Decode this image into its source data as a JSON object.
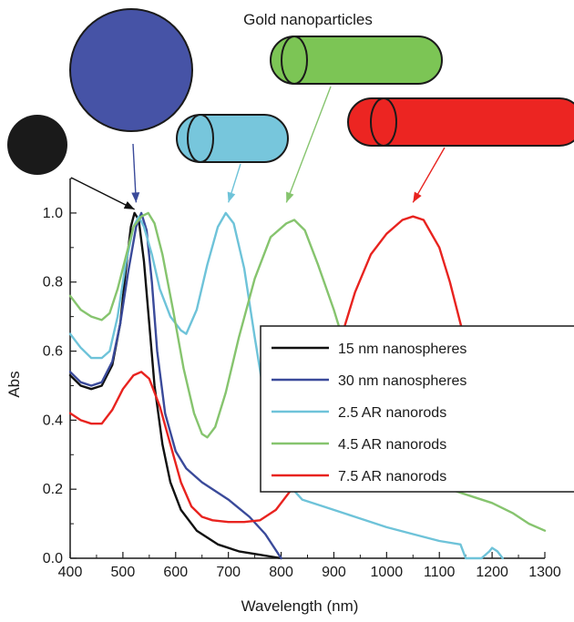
{
  "title": "Gold nanoparticles",
  "chart_data": {
    "type": "line",
    "xlabel": "Wavelength (nm)",
    "ylabel": "Abs",
    "xlim": [
      400,
      1300
    ],
    "ylim": [
      0,
      1.1
    ],
    "xticks": [
      400,
      500,
      600,
      700,
      800,
      900,
      1000,
      1100,
      1200,
      1300
    ],
    "yticks": [
      0.0,
      0.2,
      0.4,
      0.6,
      0.8,
      1.0
    ],
    "xtick_labels": [
      "400",
      "500",
      "600",
      "700",
      "800",
      "900",
      "1000",
      "1100",
      "1200",
      "1300"
    ],
    "ytick_labels": [
      "0.0",
      "0.2",
      "0.4",
      "0.6",
      "0.8",
      "1.0"
    ],
    "grid": false,
    "legend_position": "center-right",
    "series": [
      {
        "name": "15 nm nanospheres",
        "color": "#111111",
        "points": [
          [
            400,
            0.53
          ],
          [
            420,
            0.5
          ],
          [
            440,
            0.49
          ],
          [
            460,
            0.5
          ],
          [
            480,
            0.56
          ],
          [
            495,
            0.68
          ],
          [
            505,
            0.83
          ],
          [
            515,
            0.96
          ],
          [
            522,
            1.0
          ],
          [
            530,
            0.98
          ],
          [
            540,
            0.86
          ],
          [
            550,
            0.68
          ],
          [
            560,
            0.5
          ],
          [
            575,
            0.33
          ],
          [
            590,
            0.22
          ],
          [
            610,
            0.14
          ],
          [
            640,
            0.08
          ],
          [
            680,
            0.04
          ],
          [
            720,
            0.02
          ],
          [
            760,
            0.01
          ],
          [
            800,
            0.0
          ]
        ]
      },
      {
        "name": "30 nm nanospheres",
        "color": "#3a4a9a",
        "points": [
          [
            400,
            0.54
          ],
          [
            420,
            0.51
          ],
          [
            440,
            0.5
          ],
          [
            460,
            0.51
          ],
          [
            480,
            0.57
          ],
          [
            495,
            0.68
          ],
          [
            510,
            0.83
          ],
          [
            525,
            0.96
          ],
          [
            535,
            1.0
          ],
          [
            545,
            0.95
          ],
          [
            555,
            0.8
          ],
          [
            565,
            0.6
          ],
          [
            580,
            0.42
          ],
          [
            600,
            0.31
          ],
          [
            620,
            0.26
          ],
          [
            650,
            0.22
          ],
          [
            680,
            0.19
          ],
          [
            700,
            0.17
          ],
          [
            740,
            0.12
          ],
          [
            770,
            0.07
          ],
          [
            800,
            0.0
          ]
        ]
      },
      {
        "name": "2.5 AR nanorods",
        "color": "#6ec3d9",
        "points": [
          [
            400,
            0.65
          ],
          [
            420,
            0.61
          ],
          [
            440,
            0.58
          ],
          [
            460,
            0.58
          ],
          [
            475,
            0.6
          ],
          [
            490,
            0.7
          ],
          [
            505,
            0.85
          ],
          [
            520,
            0.96
          ],
          [
            530,
            0.99
          ],
          [
            540,
            0.96
          ],
          [
            555,
            0.88
          ],
          [
            570,
            0.78
          ],
          [
            590,
            0.7
          ],
          [
            610,
            0.66
          ],
          [
            620,
            0.65
          ],
          [
            640,
            0.72
          ],
          [
            660,
            0.85
          ],
          [
            680,
            0.96
          ],
          [
            695,
            1.0
          ],
          [
            710,
            0.97
          ],
          [
            730,
            0.84
          ],
          [
            750,
            0.64
          ],
          [
            770,
            0.45
          ],
          [
            790,
            0.3
          ],
          [
            810,
            0.22
          ],
          [
            840,
            0.17
          ],
          [
            880,
            0.15
          ],
          [
            940,
            0.12
          ],
          [
            1000,
            0.09
          ],
          [
            1050,
            0.07
          ],
          [
            1100,
            0.05
          ],
          [
            1140,
            0.04
          ],
          [
            1150,
            0.0
          ],
          [
            1180,
            0.0
          ],
          [
            1195,
            0.02
          ],
          [
            1200,
            0.03
          ],
          [
            1210,
            0.02
          ],
          [
            1220,
            0.0
          ]
        ]
      },
      {
        "name": "4.5 AR nanorods",
        "color": "#86c46e",
        "points": [
          [
            400,
            0.76
          ],
          [
            420,
            0.72
          ],
          [
            440,
            0.7
          ],
          [
            460,
            0.69
          ],
          [
            475,
            0.71
          ],
          [
            490,
            0.78
          ],
          [
            505,
            0.87
          ],
          [
            520,
            0.96
          ],
          [
            535,
            0.99
          ],
          [
            548,
            1.0
          ],
          [
            560,
            0.97
          ],
          [
            575,
            0.88
          ],
          [
            595,
            0.72
          ],
          [
            615,
            0.55
          ],
          [
            635,
            0.42
          ],
          [
            650,
            0.36
          ],
          [
            660,
            0.35
          ],
          [
            675,
            0.38
          ],
          [
            695,
            0.48
          ],
          [
            720,
            0.64
          ],
          [
            750,
            0.81
          ],
          [
            780,
            0.93
          ],
          [
            810,
            0.97
          ],
          [
            825,
            0.98
          ],
          [
            845,
            0.95
          ],
          [
            870,
            0.85
          ],
          [
            900,
            0.72
          ],
          [
            930,
            0.57
          ],
          [
            960,
            0.45
          ],
          [
            1000,
            0.35
          ],
          [
            1040,
            0.29
          ],
          [
            1080,
            0.24
          ],
          [
            1120,
            0.2
          ],
          [
            1160,
            0.18
          ],
          [
            1200,
            0.16
          ],
          [
            1240,
            0.13
          ],
          [
            1270,
            0.1
          ],
          [
            1300,
            0.08
          ]
        ]
      },
      {
        "name": "7.5 AR nanorods",
        "color": "#e8231f",
        "points": [
          [
            400,
            0.42
          ],
          [
            420,
            0.4
          ],
          [
            440,
            0.39
          ],
          [
            460,
            0.39
          ],
          [
            480,
            0.43
          ],
          [
            500,
            0.49
          ],
          [
            520,
            0.53
          ],
          [
            535,
            0.54
          ],
          [
            550,
            0.52
          ],
          [
            570,
            0.44
          ],
          [
            590,
            0.33
          ],
          [
            610,
            0.22
          ],
          [
            630,
            0.15
          ],
          [
            650,
            0.12
          ],
          [
            670,
            0.11
          ],
          [
            700,
            0.105
          ],
          [
            730,
            0.105
          ],
          [
            760,
            0.11
          ],
          [
            790,
            0.14
          ],
          [
            820,
            0.2
          ],
          [
            850,
            0.3
          ],
          [
            880,
            0.45
          ],
          [
            910,
            0.62
          ],
          [
            940,
            0.77
          ],
          [
            970,
            0.88
          ],
          [
            1000,
            0.94
          ],
          [
            1030,
            0.98
          ],
          [
            1050,
            0.99
          ],
          [
            1070,
            0.98
          ],
          [
            1100,
            0.9
          ],
          [
            1120,
            0.8
          ],
          [
            1140,
            0.68
          ],
          [
            1160,
            0.56
          ]
        ]
      }
    ],
    "annotations": [
      "15 nm nanospheres",
      "30 nm nanospheres",
      "2.5 AR nanorods",
      "4.5 AR nanorods",
      "7.5 AR nanorods"
    ]
  },
  "illustrations": [
    {
      "name": "15 nm nanosphere",
      "shape": "sphere",
      "color": "#1a1a1a",
      "arrow_color": "#111111",
      "arrow_target": [
        522,
        1.0
      ]
    },
    {
      "name": "30 nm nanosphere",
      "shape": "sphere",
      "color": "#4653a6",
      "arrow_color": "#3a4a9a",
      "arrow_target": [
        525,
        1.02
      ]
    },
    {
      "name": "2.5 AR nanorod",
      "shape": "rod",
      "color": "#77c6dc",
      "arrow_color": "#6ec3d9",
      "arrow_target": [
        700,
        1.02
      ]
    },
    {
      "name": "4.5 AR nanorod",
      "shape": "rod",
      "color": "#7cc555",
      "arrow_color": "#86c46e",
      "arrow_target": [
        810,
        1.02
      ]
    },
    {
      "name": "7.5 AR nanorod",
      "shape": "rod",
      "color": "#ec2522",
      "arrow_color": "#e8231f",
      "arrow_target": [
        1050,
        1.02
      ]
    }
  ]
}
